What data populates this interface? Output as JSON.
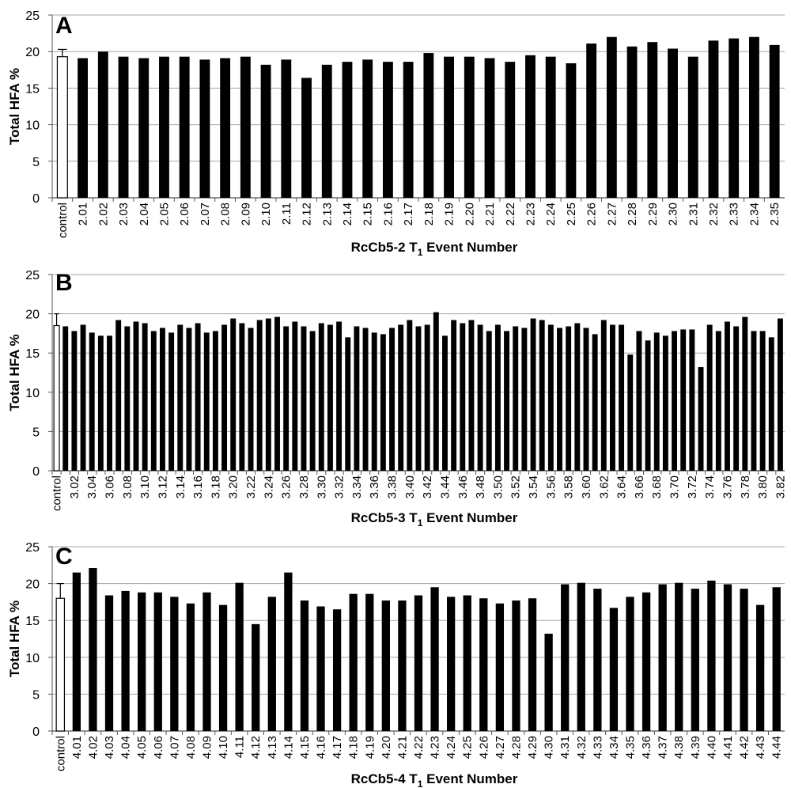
{
  "chart_data": [
    {
      "type": "bar",
      "panel_label": "A",
      "ylabel": "Total HFA %",
      "xlabel_main": "RcCb5-2 T",
      "xlabel_sub": "1",
      "xlabel_rest": " Event Number",
      "ylim": [
        0,
        25
      ],
      "yticks": [
        0,
        5,
        10,
        15,
        20,
        25
      ],
      "grid": true,
      "control": {
        "label": "control",
        "value": 19.3,
        "error": 1.0
      },
      "categories": [
        "2.01",
        "2.02",
        "2.03",
        "2.04",
        "2.05",
        "2.06",
        "2.07",
        "2.08",
        "2.09",
        "2.10",
        "2.11",
        "2.12",
        "2.13",
        "2.14",
        "2.15",
        "2.16",
        "2.17",
        "2.18",
        "2.19",
        "2.20",
        "2.21",
        "2.22",
        "2.23",
        "2.24",
        "2.25",
        "2.26",
        "2.27",
        "2.28",
        "2.29",
        "2.30",
        "2.31",
        "2.32",
        "2.33",
        "2.34",
        "2.35"
      ],
      "values": [
        19.1,
        20.0,
        19.3,
        19.1,
        19.3,
        19.3,
        18.9,
        19.1,
        19.3,
        18.2,
        18.9,
        16.4,
        18.2,
        18.6,
        18.9,
        18.6,
        18.6,
        19.8,
        19.3,
        19.3,
        19.1,
        18.6,
        19.5,
        19.3,
        18.4,
        21.1,
        22.0,
        20.7,
        21.3,
        20.4,
        19.3,
        21.5,
        21.8,
        22.0,
        20.9
      ],
      "xtick_every": 1
    },
    {
      "type": "bar",
      "panel_label": "B",
      "ylabel": "Total HFA %",
      "xlabel_main": "RcCb5-3 T",
      "xlabel_sub": "1",
      "xlabel_rest": " Event Number",
      "ylim": [
        0,
        25
      ],
      "yticks": [
        0,
        5,
        10,
        15,
        20,
        25
      ],
      "grid": true,
      "control": {
        "label": "control",
        "value": 18.5,
        "error": 1.5
      },
      "categories": [
        "3.01",
        "3.02",
        "3.03",
        "3.04",
        "3.05",
        "3.06",
        "3.07",
        "3.08",
        "3.09",
        "3.10",
        "3.11",
        "3.12",
        "3.13",
        "3.14",
        "3.15",
        "3.16",
        "3.17",
        "3.18",
        "3.19",
        "3.20",
        "3.21",
        "3.22",
        "3.23",
        "3.24",
        "3.25",
        "3.26",
        "3.27",
        "3.28",
        "3.29",
        "3.30",
        "3.31",
        "3.32",
        "3.33",
        "3.34",
        "3.35",
        "3.36",
        "3.37",
        "3.38",
        "3.39",
        "3.40",
        "3.41",
        "3.42",
        "3.43",
        "3.44",
        "3.45",
        "3.46",
        "3.47",
        "3.48",
        "3.49",
        "3.50",
        "3.51",
        "3.52",
        "3.53",
        "3.54",
        "3.55",
        "3.56",
        "3.57",
        "3.58",
        "3.59",
        "3.60",
        "3.61",
        "3.62",
        "3.63",
        "3.64",
        "3.65",
        "3.66",
        "3.67",
        "3.68",
        "3.69",
        "3.70",
        "3.71",
        "3.72",
        "3.73",
        "3.74",
        "3.75",
        "3.76",
        "3.77",
        "3.78",
        "3.79",
        "3.80",
        "3.81",
        "3.82"
      ],
      "values": [
        18.4,
        17.8,
        18.6,
        17.6,
        17.2,
        17.2,
        19.2,
        18.4,
        19.0,
        18.8,
        17.8,
        18.2,
        17.6,
        18.6,
        18.2,
        18.8,
        17.6,
        17.8,
        18.6,
        19.4,
        18.8,
        18.2,
        19.2,
        19.4,
        19.6,
        18.4,
        19.0,
        18.4,
        17.8,
        18.8,
        18.6,
        19.0,
        17.0,
        18.4,
        18.2,
        17.6,
        17.4,
        18.2,
        18.6,
        19.2,
        18.4,
        18.6,
        20.2,
        17.2,
        19.2,
        18.8,
        19.2,
        18.6,
        17.8,
        18.6,
        17.8,
        18.4,
        18.2,
        19.4,
        19.2,
        18.6,
        18.2,
        18.4,
        18.8,
        18.2,
        17.4,
        19.2,
        18.6,
        18.6,
        14.8,
        17.8,
        16.6,
        17.6,
        17.2,
        17.8,
        18.0,
        18.0,
        13.2,
        18.6,
        17.8,
        19.0,
        18.4,
        19.6,
        17.8,
        17.8,
        17.0,
        19.4
      ],
      "xtick_every": 2
    },
    {
      "type": "bar",
      "panel_label": "C",
      "ylabel": "Total HFA %",
      "xlabel_main": "RcCb5-4 T",
      "xlabel_sub": "1",
      "xlabel_rest": " Event Number",
      "ylim": [
        0,
        25
      ],
      "yticks": [
        0,
        5,
        10,
        15,
        20,
        25
      ],
      "grid": true,
      "control": {
        "label": "control",
        "value": 18.0,
        "error": 2.0
      },
      "categories": [
        "4.01",
        "4.02",
        "4.03",
        "4.04",
        "4.05",
        "4.06",
        "4.07",
        "4.08",
        "4.09",
        "4.10",
        "4.11",
        "4.12",
        "4.13",
        "4.14",
        "4.15",
        "4.16",
        "4.17",
        "4.18",
        "4.19",
        "4.20",
        "4.21",
        "4.22",
        "4.23",
        "4.24",
        "4.25",
        "4.26",
        "4.27",
        "4.28",
        "4.29",
        "4.30",
        "4.31",
        "4.32",
        "4.33",
        "4.34",
        "4.35",
        "4.36",
        "4.37",
        "4.38",
        "4.39",
        "4.40",
        "4.41",
        "4.42",
        "4.43",
        "4.44"
      ],
      "values": [
        21.5,
        22.1,
        18.4,
        19.0,
        18.8,
        18.8,
        18.2,
        17.3,
        18.8,
        17.1,
        20.1,
        14.5,
        18.2,
        21.5,
        17.7,
        16.9,
        16.5,
        18.6,
        18.6,
        17.7,
        17.7,
        18.4,
        19.5,
        18.2,
        18.4,
        18.0,
        17.3,
        17.7,
        18.0,
        13.2,
        19.9,
        20.1,
        19.3,
        16.7,
        18.2,
        18.8,
        19.9,
        20.1,
        19.3,
        20.4,
        19.9,
        19.3,
        17.1,
        19.5
      ],
      "xtick_every": 1
    }
  ]
}
